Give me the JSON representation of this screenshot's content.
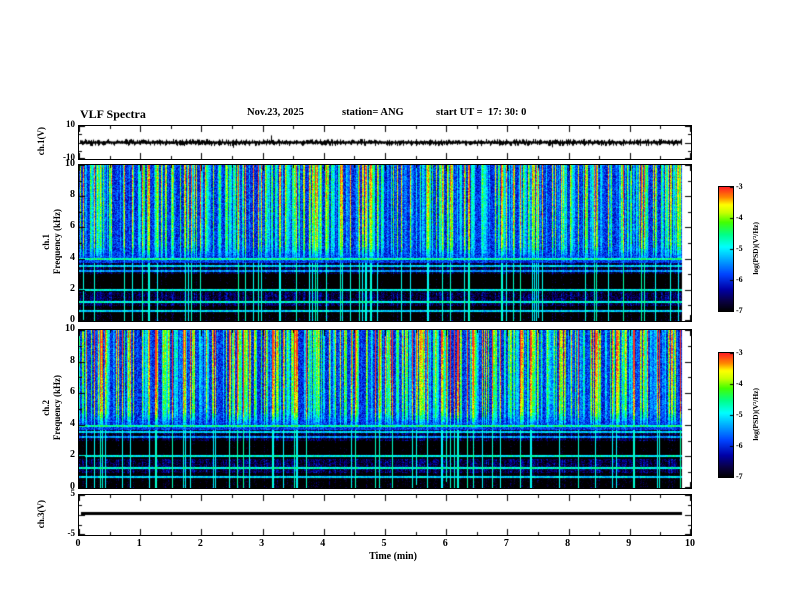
{
  "title": "VLF Spectra",
  "header": {
    "date": "Nov.23, 2025",
    "station": "station= ANG",
    "start_ut": "start UT =  17: 30: 0"
  },
  "x_axis": {
    "label": "Time (min)",
    "ticks": [
      0,
      1,
      2,
      3,
      4,
      5,
      6,
      7,
      8,
      9,
      10
    ],
    "range": [
      0,
      10
    ]
  },
  "panels": {
    "ch1_wave": {
      "ylabel": "ch.1(V)",
      "yticks": [
        10,
        -10
      ],
      "ylim": [
        -10,
        10
      ]
    },
    "ch1_spec": {
      "channel": "ch.1",
      "ylabel": "Frequency (kHz)",
      "yticks": [
        10,
        8,
        6,
        4,
        2,
        0
      ],
      "ylim": [
        0,
        10
      ]
    },
    "ch2_spec": {
      "channel": "ch.2",
      "ylabel": "Frequency (kHz)",
      "yticks": [
        10,
        8,
        6,
        4,
        2,
        0
      ],
      "ylim": [
        0,
        10
      ]
    },
    "ch3_wave": {
      "ylabel": "ch.3(V)",
      "yticks": [
        5,
        -5
      ],
      "ylim": [
        -5,
        5
      ]
    }
  },
  "colorbar": {
    "label": "log(PSD)(V²/Hz)",
    "ticks": [
      -3,
      -4,
      -5,
      -6,
      -7
    ],
    "range_top_to_bottom": [
      -3,
      -7
    ],
    "gradient_stops": [
      [
        0.0,
        "#000000"
      ],
      [
        0.08,
        "#0a0040"
      ],
      [
        0.18,
        "#0000a8"
      ],
      [
        0.3,
        "#0044ff"
      ],
      [
        0.42,
        "#00aaff"
      ],
      [
        0.52,
        "#00ffff"
      ],
      [
        0.62,
        "#00ff88"
      ],
      [
        0.72,
        "#44ff00"
      ],
      [
        0.8,
        "#ccff00"
      ],
      [
        0.86,
        "#ffff00"
      ],
      [
        0.92,
        "#ff8800"
      ],
      [
        1.0,
        "#ff2222"
      ]
    ]
  },
  "chart_data": [
    {
      "type": "line",
      "name": "ch1_waveform",
      "xlabel": "Time (min)",
      "x_range": [
        0,
        9.8
      ],
      "ylabel": "ch.1(V)",
      "ylim": [
        -10,
        10
      ],
      "summary": "continuous broadband noise of about ±1.5 V centered on 0 V for the full record, with sparse impulsive spikes reaching toward ±8 V"
    },
    {
      "type": "heatmap",
      "name": "ch1_spectrogram",
      "xlabel": "Time (min)",
      "x_range": [
        0,
        9.8
      ],
      "ylabel": "Frequency (kHz)",
      "ylim": [
        0,
        10
      ],
      "zlabel": "log(PSD)(V²/Hz)",
      "zlim": [
        -7,
        -3
      ],
      "summary": "blue background near -6 log(PSD); dense vertical sferic streaks above ~4 kHz reaching -4.5 to -3 (cyan/green/yellow, occasional red at 9-10 kHz); dark absorption bands at 1.9-3.0 kHz and below ~1 kHz; persistent narrow horizontal emission lines",
      "horizontal_lines_kHz": [
        3.95,
        3.5,
        3.2,
        2.0,
        1.2,
        0.65
      ],
      "dark_bands_kHz": [
        [
          1.9,
          3.0
        ],
        [
          0,
          0.95
        ]
      ]
    },
    {
      "type": "heatmap",
      "name": "ch2_spectrogram",
      "xlabel": "Time (min)",
      "x_range": [
        0,
        9.8
      ],
      "ylabel": "Frequency (kHz)",
      "ylim": [
        0,
        10
      ],
      "zlabel": "log(PSD)(V²/Hz)",
      "zlim": [
        -7,
        -3
      ],
      "summary": "same structure as ch.1 spectrogram but slightly brighter (more green/yellow) between 5 and 9 kHz",
      "horizontal_lines_kHz": [
        3.95,
        3.55,
        3.2,
        2.0,
        1.25,
        0.7
      ],
      "dark_bands_kHz": [
        [
          1.9,
          3.0
        ],
        [
          0,
          0.95
        ]
      ]
    },
    {
      "type": "line",
      "name": "ch3_waveform",
      "xlabel": "Time (min)",
      "x_range": [
        0,
        9.8
      ],
      "ylabel": "ch.3(V)",
      "ylim": [
        -5,
        5
      ],
      "summary": "flat constant line at approximately +0.6 V across the whole record"
    }
  ]
}
